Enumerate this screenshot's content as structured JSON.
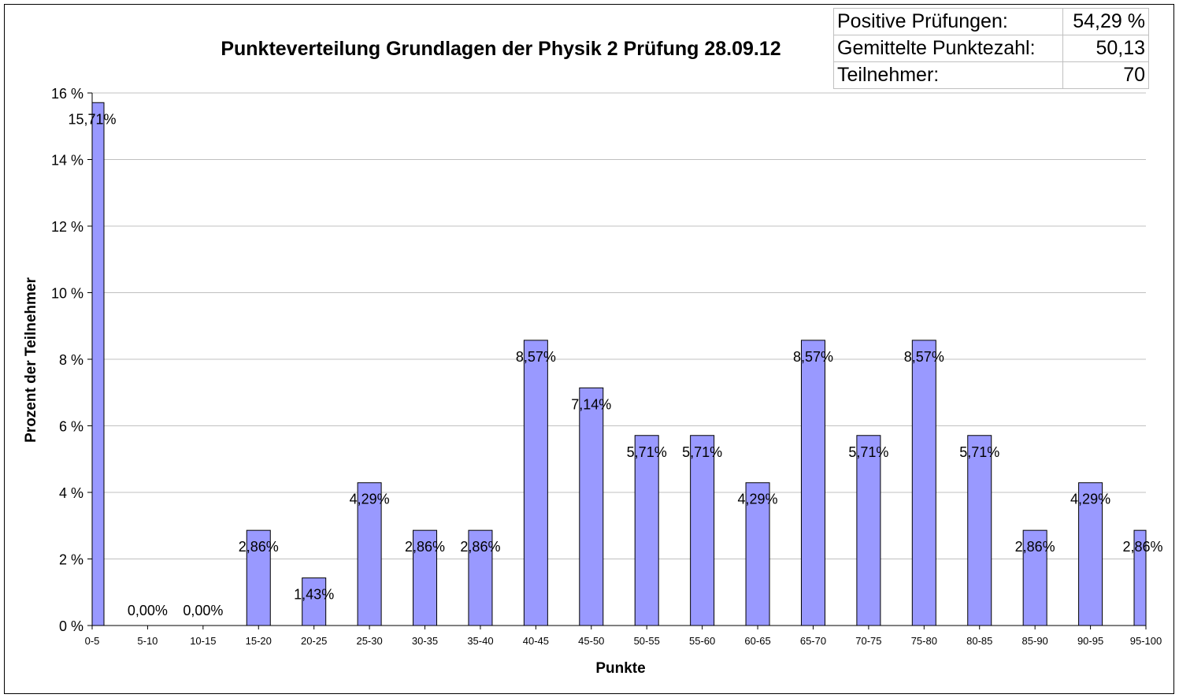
{
  "stats_table": [
    {
      "label": "Positive Prüfungen:",
      "value": "54,29 %"
    },
    {
      "label": "Gemittelte Punktezahl:",
      "value": "50,13"
    },
    {
      "label": "Teilnehmer:",
      "value": "70"
    }
  ],
  "chart_data": {
    "type": "bar",
    "title": "Punkteverteilung Grundlagen der Physik 2 Prüfung 28.09.12",
    "xlabel": "Punkte",
    "ylabel": "Prozent der Teilnehmer",
    "ylim": [
      0,
      16
    ],
    "yticks": [
      0,
      2,
      4,
      6,
      8,
      10,
      12,
      14,
      16
    ],
    "ytick_labels": [
      "0 %",
      "2 %",
      "4 %",
      "6 %",
      "8 %",
      "10 %",
      "12 %",
      "14 %",
      "16 %"
    ],
    "grid": true,
    "categories": [
      "0-5",
      "5-10",
      "10-15",
      "15-20",
      "20-25",
      "25-30",
      "30-35",
      "35-40",
      "40-45",
      "45-50",
      "50-55",
      "55-60",
      "60-65",
      "65-70",
      "70-75",
      "75-80",
      "80-85",
      "85-90",
      "90-95",
      "95-100"
    ],
    "values": [
      15.71,
      0,
      0,
      2.86,
      1.43,
      4.29,
      2.86,
      2.86,
      8.57,
      7.14,
      5.71,
      5.71,
      4.29,
      8.57,
      5.71,
      8.57,
      5.71,
      2.86,
      4.29,
      2.86
    ],
    "data_labels": [
      "15,71%",
      "0,00%",
      "0,00%",
      "2,86%",
      "1,43%",
      "4,29%",
      "2,86%",
      "2,86%",
      "8,57%",
      "7,14%",
      "5,71%",
      "5,71%",
      "4,29%",
      "8,57%",
      "5,71%",
      "8,57%",
      "5,71%",
      "2,86%",
      "4,29%",
      "2,86%"
    ],
    "bar_color": "#9999ff",
    "bar_edge_color": "#000000",
    "grid_color": "#c0c0c0"
  }
}
